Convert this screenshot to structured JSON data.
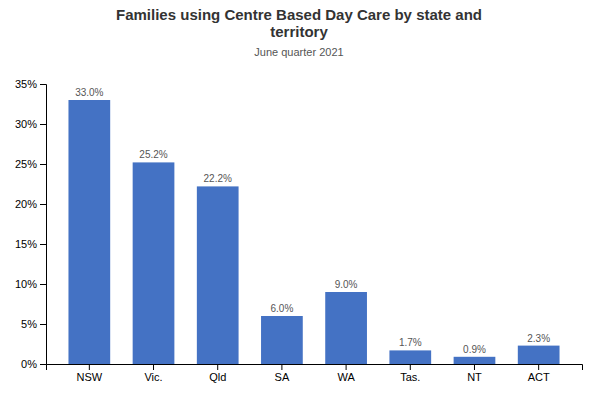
{
  "chart_data": {
    "type": "bar",
    "title": "Families using Centre Based Day Care by state and\nterritory",
    "subtitle": "June quarter 2021",
    "categories": [
      "NSW",
      "Vic.",
      "Qld",
      "SA",
      "WA",
      "Tas.",
      "NT",
      "ACT"
    ],
    "values": [
      33.0,
      25.2,
      22.2,
      6.0,
      9.0,
      1.7,
      0.9,
      2.3
    ],
    "value_labels": [
      "33.0%",
      "25.2%",
      "22.2%",
      "6.0%",
      "9.0%",
      "1.7%",
      "0.9%",
      "2.3%"
    ],
    "data_labels": true,
    "color": "#4472c4",
    "ylim": [
      0,
      35
    ],
    "yticks": [
      {
        "value": 0,
        "label": "0%"
      },
      {
        "value": 5,
        "label": "5%"
      },
      {
        "value": 10,
        "label": "10%"
      },
      {
        "value": 15,
        "label": "15%"
      },
      {
        "value": 20,
        "label": "20%"
      },
      {
        "value": 25,
        "label": "25%"
      },
      {
        "value": 30,
        "label": "30%"
      },
      {
        "value": 35,
        "label": "35%"
      }
    ],
    "grid": false
  }
}
